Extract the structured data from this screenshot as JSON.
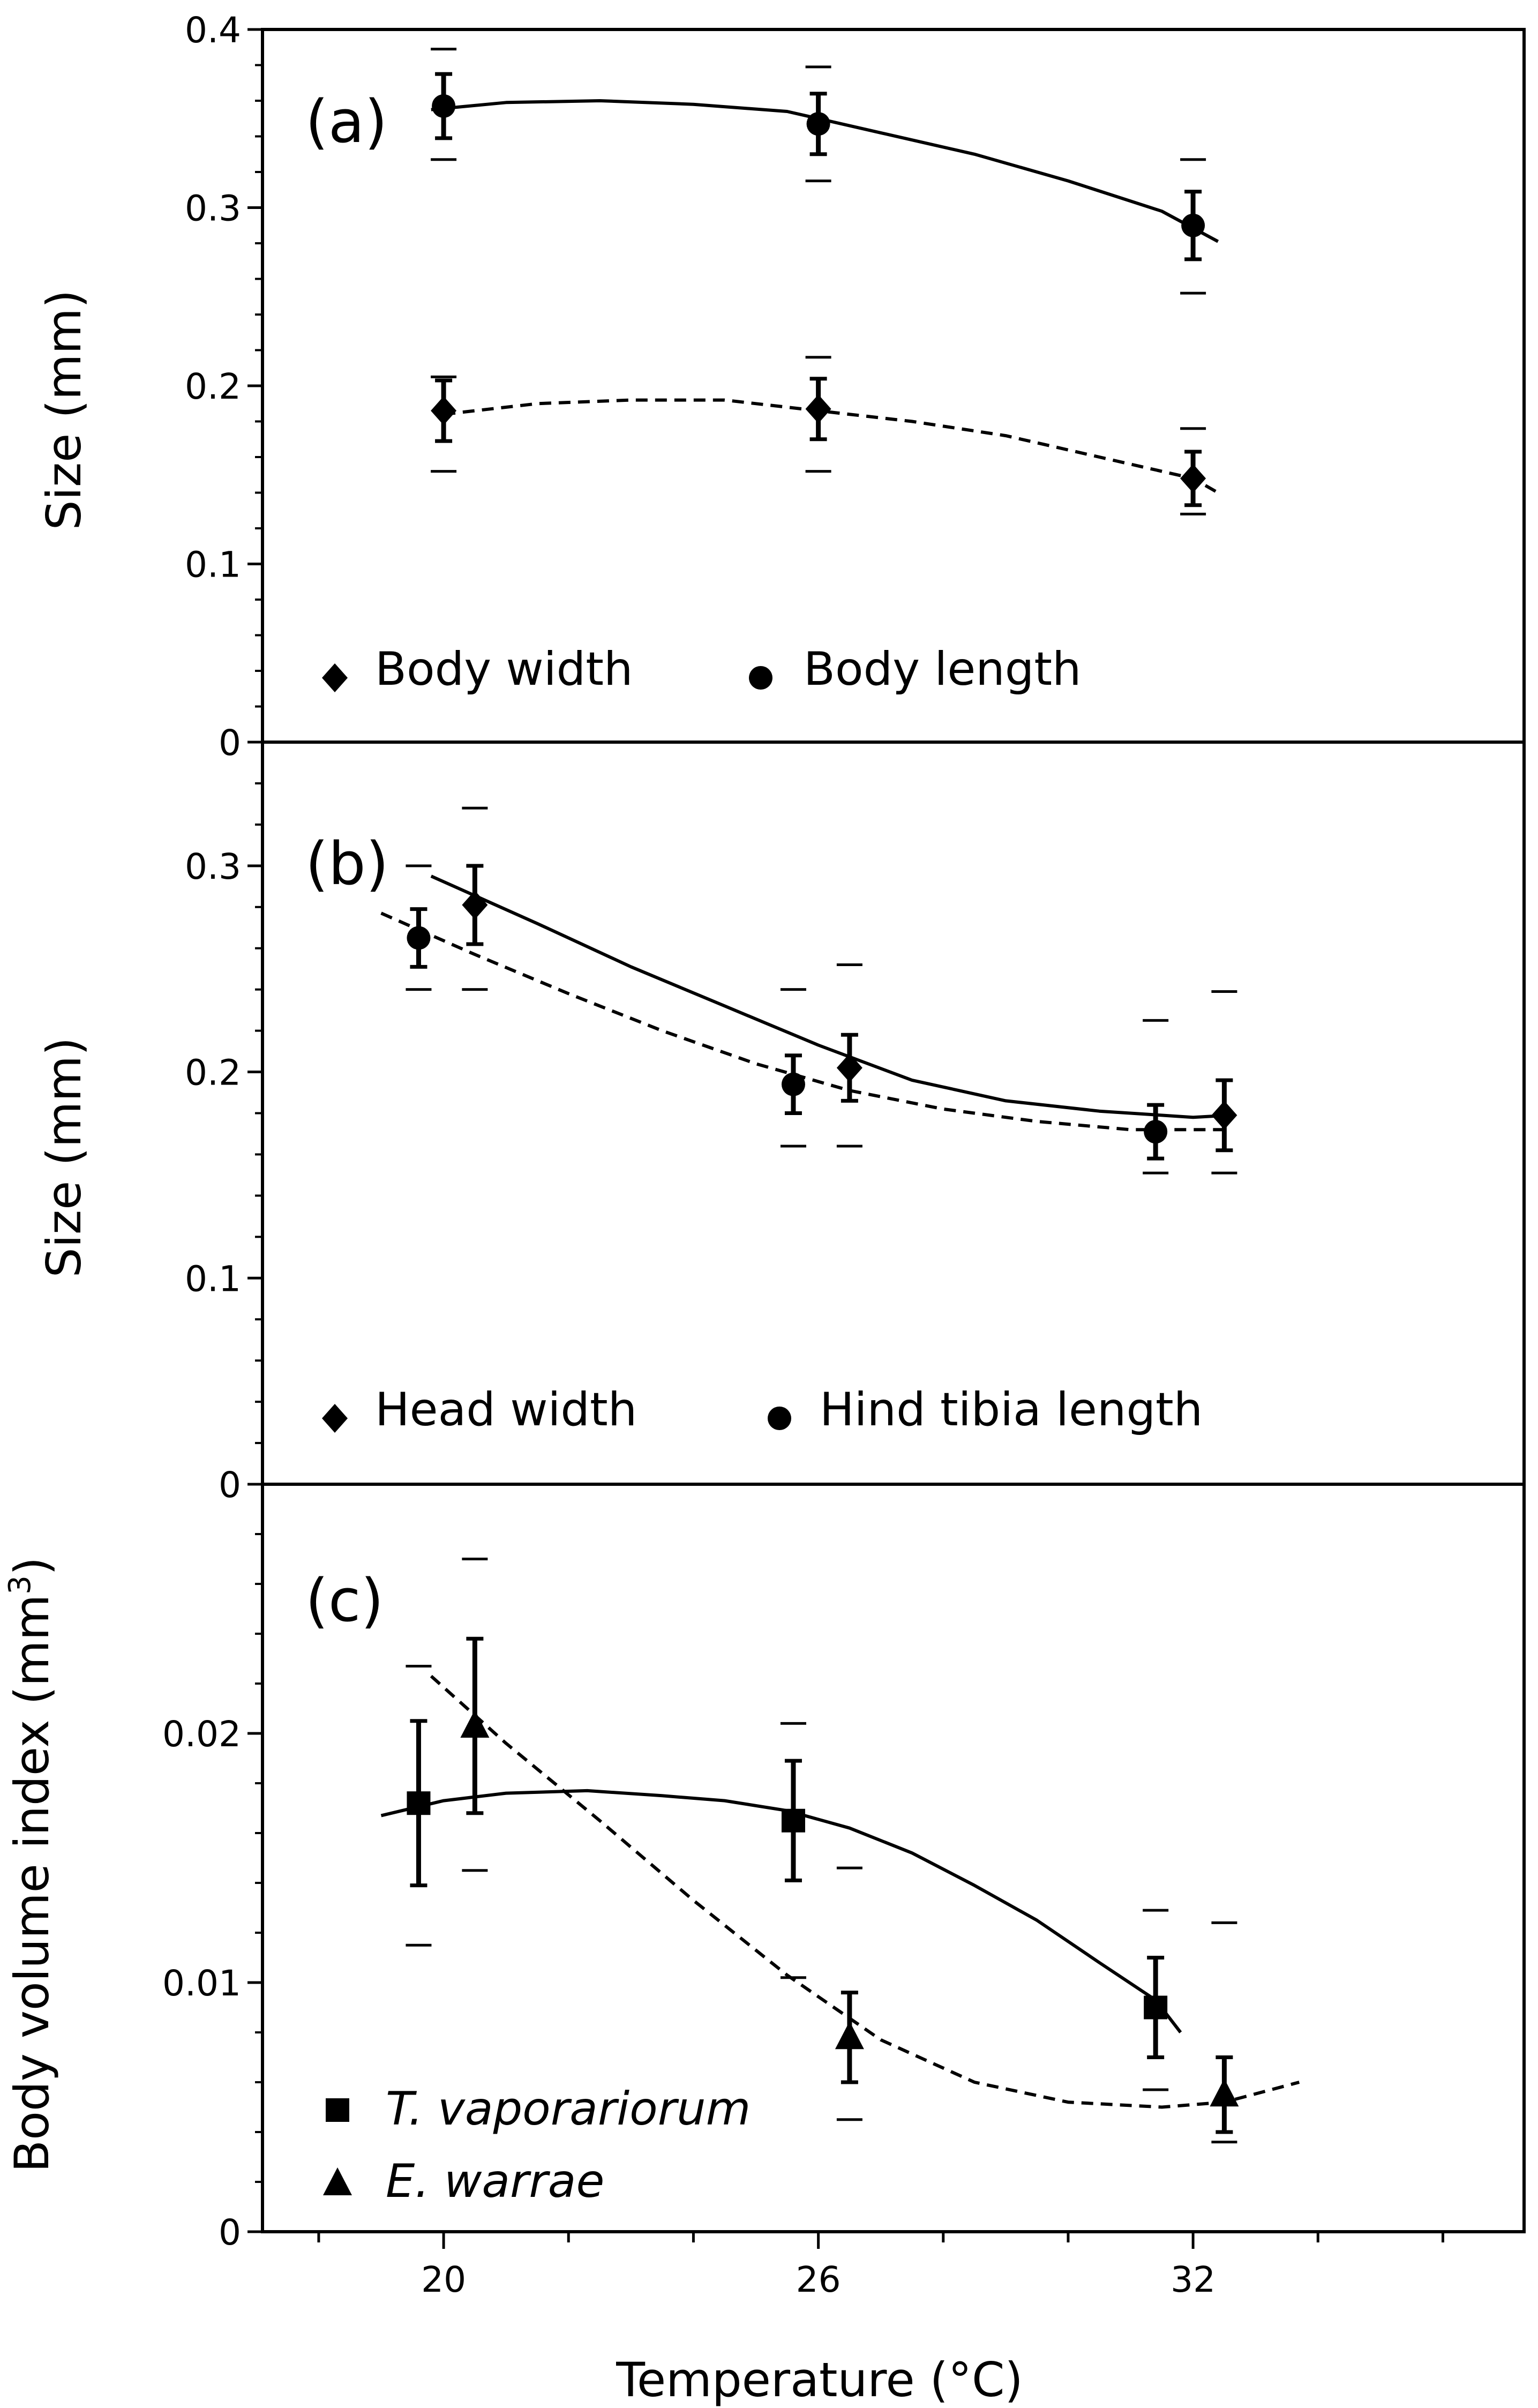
{
  "figure": {
    "xlabel": "Temperature (°C)",
    "x_ticks": [
      "20",
      "26",
      "32"
    ]
  },
  "panels": [
    {
      "tag": "(a)",
      "ylabel": "Size (mm)",
      "y_ticks": [
        "0",
        "0.1",
        "0.2",
        "0.3",
        "0.4"
      ],
      "legend": [
        "Body width",
        "Body length"
      ]
    },
    {
      "tag": "(b)",
      "ylabel": "Size (mm)",
      "y_ticks": [
        "0",
        "0.1",
        "0.2",
        "0.3"
      ],
      "legend": [
        "Head width",
        "Hind tibia length"
      ]
    },
    {
      "tag": "(c)",
      "ylabel": "Body volume index (mm",
      "ylabel_sup": "3",
      "ylabel_end": ")",
      "y_ticks": [
        "0",
        "0.01",
        "0.02"
      ],
      "legend": [
        "T. vaporariorum",
        "E. warrae"
      ]
    }
  ],
  "chart_data": [
    {
      "type": "scatter",
      "panel": "(a)",
      "xlabel": "Temperature (°C)",
      "ylabel": "Size (mm)",
      "xlim": [
        17.1,
        37.3
      ],
      "ylim": [
        0,
        0.4
      ],
      "grid": false,
      "legend_position": "bottom-left",
      "series": [
        {
          "name": "Body width",
          "marker": "diamond",
          "fit": "dashed",
          "x": [
            20,
            26,
            32
          ],
          "y": [
            0.186,
            0.187,
            0.148
          ],
          "err": [
            0.017,
            0.017,
            0.015
          ],
          "range": [
            [
              0.152,
              0.205
            ],
            [
              0.152,
              0.216
            ],
            [
              0.128,
              0.176
            ]
          ],
          "fit_points": [
            [
              20,
              0.184
            ],
            [
              21.5,
              0.19
            ],
            [
              23,
              0.192
            ],
            [
              24.5,
              0.192
            ],
            [
              26,
              0.186
            ],
            [
              27.5,
              0.18
            ],
            [
              29,
              0.172
            ],
            [
              30.5,
              0.16
            ],
            [
              32,
              0.148
            ],
            [
              32.4,
              0.14
            ]
          ]
        },
        {
          "name": "Body length",
          "marker": "circle",
          "fit": "solid",
          "x": [
            20,
            26,
            32
          ],
          "y": [
            0.357,
            0.347,
            0.29
          ],
          "err": [
            0.018,
            0.017,
            0.019
          ],
          "range": [
            [
              0.327,
              0.389
            ],
            [
              0.315,
              0.379
            ],
            [
              0.252,
              0.327
            ]
          ],
          "fit_points": [
            [
              19.8,
              0.355
            ],
            [
              21,
              0.359
            ],
            [
              22.5,
              0.36
            ],
            [
              24,
              0.358
            ],
            [
              25.5,
              0.354
            ],
            [
              27,
              0.342
            ],
            [
              28.5,
              0.33
            ],
            [
              30,
              0.315
            ],
            [
              31.5,
              0.298
            ],
            [
              32.4,
              0.281
            ]
          ]
        }
      ]
    },
    {
      "type": "scatter",
      "panel": "(b)",
      "xlabel": "Temperature (°C)",
      "ylabel": "Size (mm)",
      "xlim": [
        17.1,
        37.3
      ],
      "ylim": [
        0,
        0.36
      ],
      "grid": false,
      "legend_position": "bottom-left",
      "series": [
        {
          "name": "Head width",
          "marker": "diamond",
          "fit": "solid",
          "x": [
            20.5,
            26.5,
            32.5
          ],
          "y": [
            0.281,
            0.202,
            0.179
          ],
          "err": [
            0.019,
            0.016,
            0.017
          ],
          "range": [
            [
              0.24,
              0.328
            ],
            [
              0.164,
              0.252
            ],
            [
              0.151,
              0.239
            ]
          ],
          "fit_points": [
            [
              19.8,
              0.295
            ],
            [
              21.5,
              0.272
            ],
            [
              23,
              0.251
            ],
            [
              24.5,
              0.232
            ],
            [
              26,
              0.213
            ],
            [
              27.5,
              0.196
            ],
            [
              29,
              0.186
            ],
            [
              30.5,
              0.181
            ],
            [
              32,
              0.178
            ],
            [
              32.6,
              0.179
            ]
          ]
        },
        {
          "name": "Hind tibia length",
          "marker": "circle",
          "fit": "dashed",
          "x": [
            19.6,
            25.6,
            31.4
          ],
          "y": [
            0.265,
            0.194,
            0.171
          ],
          "err": [
            0.014,
            0.014,
            0.013
          ],
          "range": [
            [
              0.24,
              0.3
            ],
            [
              0.164,
              0.24
            ],
            [
              0.151,
              0.225
            ]
          ],
          "fit_points": [
            [
              19,
              0.277
            ],
            [
              20.5,
              0.257
            ],
            [
              22,
              0.238
            ],
            [
              23.5,
              0.22
            ],
            [
              25,
              0.204
            ],
            [
              26.5,
              0.191
            ],
            [
              28,
              0.182
            ],
            [
              29.5,
              0.176
            ],
            [
              31,
              0.172
            ],
            [
              32.5,
              0.172
            ]
          ]
        }
      ]
    },
    {
      "type": "scatter",
      "panel": "(c)",
      "xlabel": "Temperature (°C)",
      "ylabel": "Body volume index (mm3)",
      "xlim": [
        17.1,
        37.3
      ],
      "ylim": [
        0,
        0.03
      ],
      "grid": false,
      "legend_position": "bottom-left",
      "series": [
        {
          "name": "T. vaporariorum",
          "marker": "square",
          "fit": "solid",
          "x": [
            19.6,
            25.6,
            31.4
          ],
          "y": [
            0.0172,
            0.0165,
            0.009
          ],
          "err": [
            0.0033,
            0.0024,
            0.002
          ],
          "range": [
            [
              0.0115,
              0.0227
            ],
            [
              0.0102,
              0.0204
            ],
            [
              0.0057,
              0.0129
            ]
          ],
          "fit_points": [
            [
              19,
              0.0167
            ],
            [
              20,
              0.0173
            ],
            [
              21,
              0.0176
            ],
            [
              22.3,
              0.0177
            ],
            [
              23.5,
              0.0175
            ],
            [
              24.5,
              0.0173
            ],
            [
              25.5,
              0.0169
            ],
            [
              26.5,
              0.0162
            ],
            [
              27.5,
              0.0152
            ],
            [
              28.5,
              0.0139
            ],
            [
              29.5,
              0.0125
            ],
            [
              30.5,
              0.0108
            ],
            [
              31.4,
              0.0093
            ],
            [
              31.8,
              0.008
            ]
          ]
        },
        {
          "name": "E. warrae",
          "marker": "triangle",
          "fit": "dashed",
          "x": [
            20.5,
            26.5,
            32.5
          ],
          "y": [
            0.0203,
            0.0078,
            0.0055
          ],
          "err": [
            0.0035,
            0.0018,
            0.0015
          ],
          "range": [
            [
              0.0145,
              0.027
            ],
            [
              0.0045,
              0.0146
            ],
            [
              0.0036,
              0.0124
            ]
          ],
          "fit_points": [
            [
              19.8,
              0.0223
            ],
            [
              21,
              0.0196
            ],
            [
              22.5,
              0.0165
            ],
            [
              24,
              0.0133
            ],
            [
              25.5,
              0.0103
            ],
            [
              27,
              0.0077
            ],
            [
              28.5,
              0.006
            ],
            [
              30,
              0.0052
            ],
            [
              31.5,
              0.005
            ],
            [
              32.5,
              0.0052
            ],
            [
              33.7,
              0.006
            ]
          ]
        }
      ]
    }
  ]
}
